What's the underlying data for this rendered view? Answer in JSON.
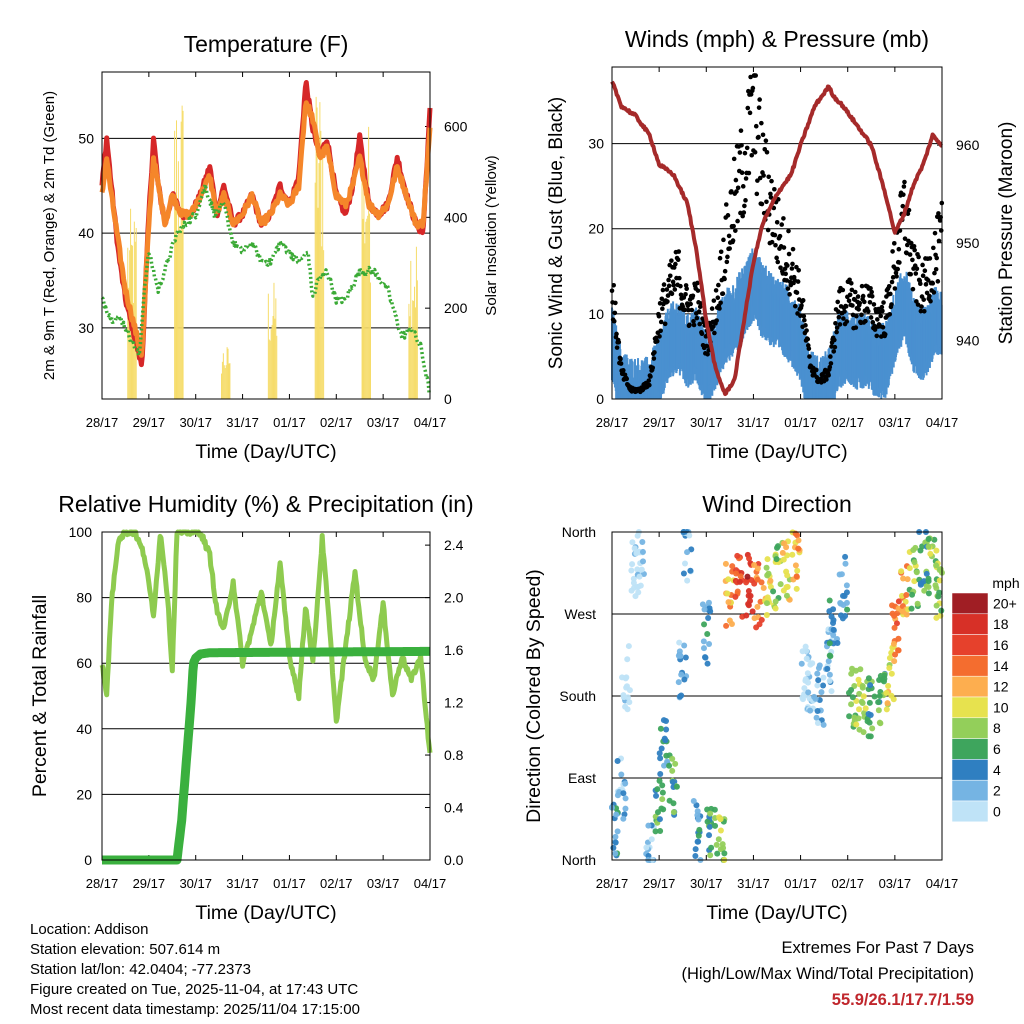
{
  "chart_data": [
    {
      "type": "line",
      "title": "Temperature (F)",
      "xlabel": "Time (Day/UTC)",
      "ylabel": "2m & 9m T (Red, Orange) & 2m Td (Green)",
      "ylabel_right": "Solar Insolation (Yellow)",
      "xlim": [
        0,
        7
      ],
      "ylim": [
        22.5,
        57
      ],
      "ylim_right": [
        0,
        720
      ],
      "xticks": [
        "28/17",
        "29/17",
        "30/17",
        "31/17",
        "01/17",
        "02/17",
        "03/17",
        "04/17"
      ],
      "yticks": [
        30,
        40,
        50
      ],
      "yticks_right": [
        0,
        200,
        400,
        600
      ],
      "series": [
        {
          "name": "2m T",
          "color": "#d62728",
          "x": [
            0,
            0.1,
            0.2,
            0.35,
            0.5,
            0.7,
            0.85,
            1.0,
            1.1,
            1.2,
            1.35,
            1.5,
            1.7,
            1.9,
            2.1,
            2.3,
            2.45,
            2.6,
            2.8,
            3.0,
            3.2,
            3.4,
            3.6,
            3.8,
            4.0,
            4.2,
            4.35,
            4.5,
            4.65,
            4.8,
            5.0,
            5.2,
            5.35,
            5.5,
            5.7,
            5.9,
            6.1,
            6.3,
            6.5,
            6.7,
            6.85,
            7.0
          ],
          "y": [
            45,
            50,
            45,
            38,
            33,
            29,
            26,
            42,
            50,
            45,
            41,
            44,
            42,
            42,
            44,
            47,
            42,
            45,
            41,
            42,
            44,
            41,
            42,
            45,
            43,
            46,
            56,
            51,
            48,
            50,
            44,
            42,
            45,
            50,
            43,
            42,
            43,
            48,
            44,
            41,
            40,
            53
          ]
        },
        {
          "name": "9m T",
          "color": "#f5862a",
          "x": [
            0,
            0.1,
            0.2,
            0.35,
            0.5,
            0.7,
            0.85,
            1.0,
            1.1,
            1.2,
            1.35,
            1.5,
            1.7,
            1.9,
            2.1,
            2.3,
            2.45,
            2.6,
            2.8,
            3.0,
            3.2,
            3.4,
            3.6,
            3.8,
            4.0,
            4.2,
            4.35,
            4.5,
            4.65,
            4.8,
            5.0,
            5.2,
            5.35,
            5.5,
            5.7,
            5.9,
            6.1,
            6.3,
            6.5,
            6.7,
            6.85,
            7.0
          ],
          "y": [
            44,
            48,
            44,
            39,
            34,
            30,
            27,
            41,
            48,
            45,
            41,
            44,
            42,
            42,
            44,
            46,
            42,
            44,
            41,
            42,
            44,
            41,
            42,
            44,
            43,
            45,
            54,
            52,
            48,
            49,
            44,
            43,
            45,
            48,
            43,
            42,
            43,
            47,
            44,
            41,
            41,
            51
          ]
        },
        {
          "name": "2m Td",
          "color": "#3aaa35",
          "x": [
            0,
            0.2,
            0.4,
            0.6,
            0.8,
            0.9,
            1.0,
            1.2,
            1.4,
            1.6,
            1.8,
            2.0,
            2.2,
            2.4,
            2.6,
            2.8,
            3.0,
            3.2,
            3.4,
            3.6,
            3.8,
            4.0,
            4.2,
            4.4,
            4.5,
            4.6,
            4.8,
            5.0,
            5.2,
            5.5,
            5.8,
            6.1,
            6.4,
            6.6,
            6.8,
            7.0
          ],
          "y": [
            33,
            31,
            31,
            29,
            27,
            34,
            38,
            34,
            37,
            40,
            41,
            42,
            45,
            42,
            43,
            39,
            38,
            39,
            37,
            37,
            39,
            38,
            37,
            38,
            33,
            35,
            36,
            33,
            33,
            36,
            36,
            34,
            29,
            30,
            28,
            23
          ]
        }
      ]
    },
    {
      "type": "scatter",
      "title": "Winds (mph) & Pressure (mb)",
      "xlabel": "Time (Day/UTC)",
      "ylabel": "Sonic Wind & Gust (Blue, Black)",
      "ylabel_right": "Station Pressure (Maroon)",
      "xlim": [
        0,
        7
      ],
      "ylim": [
        0,
        39
      ],
      "ylim_right": [
        934,
        968
      ],
      "xticks": [
        "28/17",
        "29/17",
        "30/17",
        "31/17",
        "01/17",
        "02/17",
        "03/17",
        "04/17"
      ],
      "yticks": [
        0,
        10,
        20,
        30
      ],
      "yticks_right": [
        940,
        950,
        960
      ],
      "series": [
        {
          "name": "Station Pressure",
          "color": "#a52a2a",
          "x": [
            0,
            0.2,
            0.5,
            0.8,
            1.0,
            1.3,
            1.6,
            1.8,
            2.0,
            2.2,
            2.4,
            2.6,
            2.8,
            3.0,
            3.2,
            3.5,
            3.8,
            4.0,
            4.3,
            4.6,
            4.7,
            4.9,
            5.2,
            5.5,
            5.8,
            6.0,
            6.2,
            6.4,
            6.6,
            6.8,
            7.0
          ],
          "y": [
            966.5,
            964,
            963,
            961,
            958,
            957,
            954,
            949,
            942,
            937,
            934.5,
            936,
            942,
            948,
            952,
            955,
            957,
            960,
            964,
            966,
            965,
            964,
            962,
            960,
            955,
            951,
            953,
            956,
            958,
            961,
            960
          ]
        },
        {
          "name": "Sonic Wind",
          "color": "#4a90d0",
          "x": [
            0,
            0.2,
            0.4,
            0.6,
            0.8,
            1.0,
            1.2,
            1.4,
            1.6,
            1.8,
            2.0,
            2.2,
            2.4,
            2.6,
            2.8,
            3.0,
            3.2,
            3.4,
            3.6,
            3.8,
            4.0,
            4.2,
            4.4,
            4.6,
            4.8,
            5.0,
            5.2,
            5.4,
            5.6,
            5.8,
            6.0,
            6.2,
            6.4,
            6.6,
            6.8,
            7.0
          ],
          "y": [
            6,
            1,
            0,
            0,
            0,
            3,
            6,
            7,
            5,
            6,
            3,
            5,
            8,
            9,
            11,
            13,
            11,
            10,
            9,
            8,
            6,
            1,
            0,
            1,
            5,
            6,
            5,
            5,
            4,
            4,
            8,
            11,
            7,
            6,
            8,
            9
          ]
        },
        {
          "name": "Gust",
          "color": "#000000",
          "x": [
            0,
            0.2,
            0.4,
            0.6,
            0.8,
            1.0,
            1.2,
            1.4,
            1.6,
            1.8,
            2.0,
            2.2,
            2.4,
            2.6,
            2.8,
            3.0,
            3.2,
            3.4,
            3.6,
            3.8,
            4.0,
            4.2,
            4.4,
            4.6,
            4.8,
            5.0,
            5.2,
            5.4,
            5.6,
            5.8,
            6.0,
            6.2,
            6.4,
            6.6,
            6.8,
            7.0
          ],
          "y": [
            12,
            3,
            1,
            1,
            2,
            9,
            12,
            14,
            10,
            11,
            6,
            10,
            17,
            22,
            26,
            32,
            25,
            21,
            17,
            15,
            11,
            4,
            2,
            3,
            10,
            11,
            10,
            11,
            9,
            9,
            15,
            21,
            14,
            12,
            15,
            18
          ]
        }
      ]
    },
    {
      "type": "line",
      "title": "Relative Humidity (%) & Precipitation (in)",
      "xlabel": "Time (Day/UTC)",
      "ylabel": "Percent & Total Rainfall",
      "xlim": [
        0,
        7
      ],
      "ylim": [
        0,
        100
      ],
      "ylim_right": [
        0,
        2.5
      ],
      "xticks": [
        "28/17",
        "29/17",
        "30/17",
        "31/17",
        "01/17",
        "02/17",
        "03/17",
        "04/17"
      ],
      "yticks": [
        0,
        20,
        40,
        60,
        80,
        100
      ],
      "yticks_right": [
        "0.0",
        "0.4",
        "0.8",
        "1.2",
        "1.6",
        "2.0",
        "2.4"
      ],
      "series": [
        {
          "name": "Relative Humidity",
          "color": "#8ecb4f",
          "x": [
            0,
            0.1,
            0.2,
            0.35,
            0.5,
            0.7,
            0.9,
            1.1,
            1.25,
            1.4,
            1.5,
            1.6,
            1.75,
            1.9,
            2.1,
            2.3,
            2.45,
            2.6,
            2.8,
            3.0,
            3.2,
            3.4,
            3.6,
            3.8,
            4.0,
            4.2,
            4.35,
            4.5,
            4.7,
            4.85,
            5.0,
            5.2,
            5.4,
            5.6,
            5.8,
            6.0,
            6.2,
            6.4,
            6.6,
            6.8,
            7.0
          ],
          "y": [
            60,
            50,
            78,
            98,
            100,
            100,
            93,
            75,
            100,
            80,
            58,
            100,
            100,
            100,
            100,
            93,
            76,
            70,
            85,
            60,
            70,
            82,
            65,
            90,
            62,
            50,
            78,
            60,
            98,
            72,
            42,
            65,
            88,
            62,
            55,
            78,
            50,
            62,
            55,
            62,
            32
          ]
        },
        {
          "name": "Total Rainfall",
          "color": "#3ab03e",
          "axis": "right",
          "x": [
            0,
            1.6,
            1.7,
            1.8,
            1.9,
            1.95,
            2.0,
            2.1,
            2.3,
            7.0
          ],
          "y": [
            0,
            0,
            0.3,
            0.75,
            1.2,
            1.5,
            1.54,
            1.57,
            1.58,
            1.59
          ]
        }
      ]
    },
    {
      "type": "scatter",
      "title": "Wind Direction",
      "xlabel": "Time (Day/UTC)",
      "ylabel": "Direction (Colored By Speed)",
      "xlim": [
        0,
        7
      ],
      "ylim": [
        0,
        360
      ],
      "xticks": [
        "28/17",
        "29/17",
        "30/17",
        "31/17",
        "01/17",
        "02/17",
        "03/17",
        "04/17"
      ],
      "yticks": [
        "North",
        "East",
        "South",
        "West",
        "North"
      ],
      "colorbar": {
        "title": "mph",
        "labels": [
          "20+",
          "18",
          "16",
          "14",
          "12",
          "10",
          "8",
          "6",
          "4",
          "2",
          "0"
        ],
        "colors": [
          "#a01e24",
          "#d73027",
          "#e6412c",
          "#f46d2f",
          "#fdae4f",
          "#e7e24e",
          "#93cf5a",
          "#3ea55d",
          "#2f7fc1",
          "#75b4e3",
          "#bfe3f7"
        ]
      },
      "series": [
        {
          "name": "Direction",
          "x": [
            0.05,
            0.2,
            0.3,
            0.5,
            0.6,
            0.8,
            1.0,
            1.1,
            1.3,
            1.5,
            1.6,
            1.8,
            2.0,
            2.1,
            2.3,
            2.5,
            2.7,
            2.9,
            3.1,
            3.3,
            3.5,
            3.7,
            3.9,
            4.1,
            4.2,
            4.4,
            4.6,
            4.7,
            4.9,
            5.1,
            5.3,
            5.5,
            5.7,
            5.9,
            6.0,
            6.2,
            6.4,
            6.6,
            6.8,
            6.95
          ],
          "y": [
            30,
            80,
            200,
            320,
            330,
            10,
            60,
            120,
            80,
            210,
            340,
            30,
            250,
            40,
            15,
            290,
            300,
            300,
            290,
            300,
            310,
            320,
            330,
            200,
            190,
            180,
            220,
            250,
            300,
            180,
            175,
            170,
            175,
            200,
            250,
            290,
            310,
            330,
            320,
            300
          ],
          "speed": [
            4,
            2,
            0,
            0,
            0,
            2,
            6,
            4,
            6,
            2,
            2,
            4,
            4,
            6,
            8,
            12,
            16,
            18,
            14,
            10,
            8,
            10,
            12,
            0,
            0,
            2,
            2,
            4,
            4,
            8,
            8,
            6,
            6,
            10,
            14,
            12,
            8,
            6,
            8,
            8
          ]
        }
      ]
    }
  ],
  "station_info": {
    "location": "Location: Addison",
    "elevation": "Station elevation: 507.614 m",
    "latlon": "Station lat/lon: 42.0404; -77.2373",
    "created": "Figure created on Tue, 2025-11-04, at 17:43 UTC",
    "latest": "Most recent data timestamp: 2025/11/04 17:15:00"
  },
  "extremes": {
    "title": "Extremes For Past 7 Days",
    "subtitle": "(High/Low/Max Wind/Total Precipitation)",
    "values": "55.9/26.1/17.7/1.59",
    "color": "#c0272d"
  }
}
